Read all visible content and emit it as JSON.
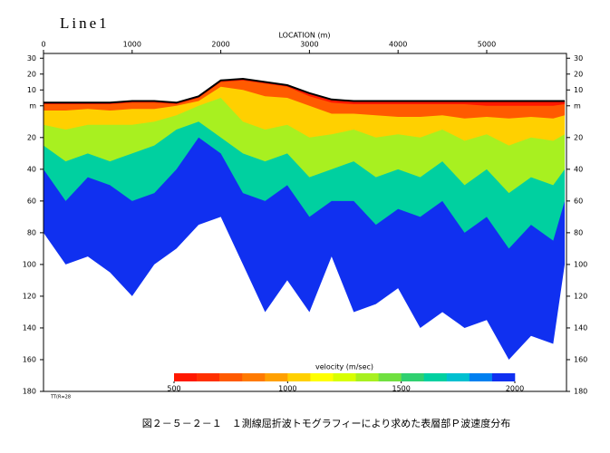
{
  "chart_data": {
    "type": "section",
    "title": "Line1",
    "xlabel": "LOCATION (m)",
    "caption": "図２－５－２－１　１測線屈折波トモグラフィーにより求めた表層部Ｐ波速度分布",
    "note": "TT(R=28",
    "xlim": [
      0,
      5900
    ],
    "xticks": [
      0,
      1000,
      2000,
      3000,
      4000,
      5000
    ],
    "ylim": [
      33,
      -180
    ],
    "yticks": [
      30,
      20,
      10,
      {
        "value": 0,
        "label": "m"
      },
      {
        "value": -20,
        "label": "20"
      },
      {
        "value": -40,
        "label": "40"
      },
      {
        "value": -60,
        "label": "60"
      },
      {
        "value": -80,
        "label": "80"
      },
      {
        "value": -100,
        "label": "100"
      },
      {
        "value": -120,
        "label": "120"
      },
      {
        "value": -140,
        "label": "140"
      },
      {
        "value": -160,
        "label": "160"
      },
      {
        "value": -180,
        "label": "180"
      }
    ],
    "x": [
      0,
      250,
      500,
      750,
      1000,
      1250,
      1500,
      1750,
      2000,
      2250,
      2500,
      2750,
      3000,
      3250,
      3500,
      3750,
      4000,
      4250,
      4500,
      4750,
      5000,
      5250,
      5500,
      5750,
      5880
    ],
    "surface": [
      2,
      2,
      2,
      2,
      3,
      3,
      2,
      6,
      16,
      17,
      15,
      13,
      8,
      4,
      3,
      3,
      3,
      3,
      3,
      3,
      3,
      3,
      3,
      3,
      3
    ],
    "surface_color": "#000000",
    "contours": [
      {
        "velocity": 1950,
        "values": [
          -80,
          -100,
          -95,
          -105,
          -120,
          -100,
          -90,
          -75,
          -70,
          -100,
          -130,
          -110,
          -130,
          -95,
          -130,
          -125,
          -115,
          -140,
          -130,
          -140,
          -135,
          -160,
          -145,
          -150,
          -100
        ]
      },
      {
        "velocity": 1650,
        "values": [
          -40,
          -60,
          -45,
          -50,
          -60,
          -55,
          -40,
          -20,
          -30,
          -55,
          -60,
          -50,
          -70,
          -60,
          -60,
          -75,
          -65,
          -70,
          -60,
          -80,
          -70,
          -90,
          -75,
          -85,
          -60
        ]
      },
      {
        "velocity": 1350,
        "values": [
          -25,
          -35,
          -30,
          -35,
          -30,
          -25,
          -15,
          -10,
          -20,
          -30,
          -35,
          -30,
          -45,
          -40,
          -35,
          -45,
          -40,
          -45,
          -35,
          -50,
          -40,
          -55,
          -45,
          -50,
          -40
        ]
      },
      {
        "velocity": 1050,
        "values": [
          -12,
          -15,
          -12,
          -12,
          -12,
          -10,
          -6,
          0,
          5,
          -10,
          -15,
          -12,
          -20,
          -18,
          -15,
          -20,
          -18,
          -20,
          -15,
          -22,
          -18,
          -25,
          -20,
          -22,
          -18
        ]
      },
      {
        "velocity": 750,
        "values": [
          -3,
          -3,
          -2,
          -3,
          -2,
          -2,
          0,
          3,
          12,
          10,
          6,
          5,
          0,
          -5,
          -5,
          -6,
          -7,
          -7,
          -6,
          -8,
          -7,
          -8,
          -7,
          -8,
          -6
        ]
      },
      {
        "velocity": 550,
        "values": [
          1,
          1,
          1,
          1,
          2,
          2,
          1,
          5,
          15,
          16,
          14,
          12,
          6,
          2,
          1,
          1,
          1,
          1,
          1,
          1,
          0,
          0,
          0,
          0,
          1
        ]
      }
    ],
    "colorbar": {
      "label": "velocity (m/sec)",
      "vlim": [
        500,
        2000
      ],
      "ticks": [
        500,
        1000,
        1500,
        2000
      ],
      "colors": [
        "#ff1800",
        "#ff3000",
        "#ff5a00",
        "#ff7a00",
        "#ffa000",
        "#ffd000",
        "#ffff00",
        "#d8ff00",
        "#a8f020",
        "#70e040",
        "#30d070",
        "#00d0a0",
        "#00c0d0",
        "#0080f0",
        "#1030f0"
      ]
    }
  }
}
